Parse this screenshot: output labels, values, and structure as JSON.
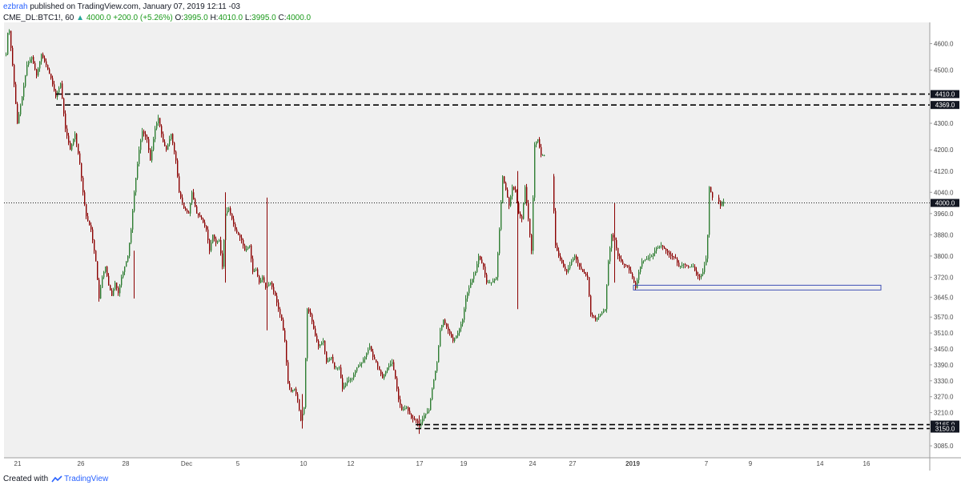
{
  "header": {
    "author": "ezbrah",
    "published": "published on TradingView.com, January 07, 2019 12:11 -03"
  },
  "symbol_line": {
    "symbol": "CME_DL:BTC1!, 60",
    "last": "4000.0",
    "change": "+200.0 (+5.26%)",
    "o_label": "O:",
    "o_value": "3995.0",
    "h_label": "H:",
    "h_value": "4010.0",
    "l_label": "L:",
    "l_value": "3995.0",
    "c_label": "C:",
    "c_value": "4000.0"
  },
  "footer": {
    "created_with": "Created with",
    "brand": "TradingView"
  },
  "colors": {
    "up": "#26a69a",
    "down": "#ef5350",
    "candle_up": "#2e7d32",
    "candle_down": "#8b0000",
    "plot_bg": "#f0f0f0",
    "level_line": "#000000",
    "zone_border": "#3f51b5"
  },
  "chart_data": {
    "type": "candlestick",
    "y_ticks": [
      "4600.0",
      "4500.0",
      "4369.0",
      "4300.0",
      "4200.0",
      "4120.0",
      "4040.0",
      "3960.0",
      "3880.0",
      "3800.0",
      "3720.0",
      "3645.0",
      "3570.0",
      "3510.0",
      "3450.0",
      "3390.0",
      "3330.0",
      "3270.0",
      "3210.0",
      "3085.0"
    ],
    "ylim": [
      3040,
      4680
    ],
    "x_labels": [
      "21",
      "26",
      "28",
      "Dec",
      "5",
      "10",
      "12",
      "17",
      "19",
      "24",
      "27",
      "2019",
      "7",
      "9",
      "14",
      "16"
    ],
    "horizontal_levels": [
      {
        "price": 4410.0,
        "label": "4410.0",
        "style": "dashed"
      },
      {
        "price": 4369.0,
        "label": "4369.0",
        "style": "dashed"
      },
      {
        "price": 4000.0,
        "label": "4000.0",
        "style": "dotted"
      },
      {
        "price": 3165.0,
        "label": "3165.0",
        "style": "dashed"
      },
      {
        "price": 3150.0,
        "label": "3150.0",
        "style": "dashed"
      }
    ],
    "zone": {
      "price_top": 3690,
      "price_bottom": 3672,
      "x_start_label": "2019",
      "x_end_label": "16"
    },
    "price_path": [
      [
        0,
        4560
      ],
      [
        3,
        4680
      ],
      [
        8,
        4520
      ],
      [
        14,
        4300
      ],
      [
        20,
        4400
      ],
      [
        26,
        4520
      ],
      [
        32,
        4550
      ],
      [
        38,
        4480
      ],
      [
        44,
        4560
      ],
      [
        50,
        4520
      ],
      [
        56,
        4470
      ],
      [
        62,
        4400
      ],
      [
        68,
        4450
      ],
      [
        74,
        4280
      ],
      [
        80,
        4200
      ],
      [
        86,
        4260
      ],
      [
        92,
        4150
      ],
      [
        96,
        4040
      ],
      [
        100,
        3950
      ],
      [
        106,
        3900
      ],
      [
        112,
        3780
      ],
      [
        116,
        3640
      ],
      [
        120,
        3720
      ],
      [
        124,
        3760
      ],
      [
        128,
        3690
      ],
      [
        132,
        3650
      ],
      [
        136,
        3700
      ],
      [
        140,
        3660
      ],
      [
        144,
        3720
      ],
      [
        148,
        3760
      ],
      [
        152,
        3800
      ],
      [
        156,
        3900
      ],
      [
        160,
        4040
      ],
      [
        166,
        4200
      ],
      [
        170,
        4270
      ],
      [
        176,
        4240
      ],
      [
        180,
        4160
      ],
      [
        186,
        4280
      ],
      [
        190,
        4320
      ],
      [
        196,
        4230
      ],
      [
        200,
        4200
      ],
      [
        206,
        4260
      ],
      [
        212,
        4160
      ],
      [
        216,
        4040
      ],
      [
        222,
        3980
      ],
      [
        228,
        3960
      ],
      [
        232,
        4040
      ],
      [
        238,
        3960
      ],
      [
        244,
        3940
      ],
      [
        250,
        3900
      ],
      [
        254,
        3820
      ],
      [
        258,
        3880
      ],
      [
        262,
        3850
      ],
      [
        266,
        3860
      ],
      [
        270,
        3760
      ],
      [
        274,
        3960
      ],
      [
        278,
        3980
      ],
      [
        282,
        3940
      ],
      [
        286,
        3900
      ],
      [
        290,
        3880
      ],
      [
        294,
        3860
      ],
      [
        298,
        3820
      ],
      [
        304,
        3840
      ],
      [
        308,
        3740
      ],
      [
        312,
        3750
      ],
      [
        316,
        3700
      ],
      [
        320,
        3720
      ],
      [
        324,
        3680
      ],
      [
        330,
        3700
      ],
      [
        336,
        3650
      ],
      [
        340,
        3600
      ],
      [
        344,
        3560
      ],
      [
        348,
        3480
      ],
      [
        352,
        3320
      ],
      [
        356,
        3290
      ],
      [
        360,
        3300
      ],
      [
        364,
        3260
      ],
      [
        368,
        3180
      ],
      [
        372,
        3230
      ],
      [
        376,
        3600
      ],
      [
        380,
        3580
      ],
      [
        386,
        3500
      ],
      [
        390,
        3460
      ],
      [
        396,
        3480
      ],
      [
        400,
        3400
      ],
      [
        406,
        3420
      ],
      [
        410,
        3380
      ],
      [
        416,
        3380
      ],
      [
        420,
        3300
      ],
      [
        426,
        3330
      ],
      [
        432,
        3340
      ],
      [
        438,
        3380
      ],
      [
        444,
        3400
      ],
      [
        448,
        3420
      ],
      [
        454,
        3460
      ],
      [
        458,
        3420
      ],
      [
        462,
        3400
      ],
      [
        466,
        3370
      ],
      [
        470,
        3340
      ],
      [
        476,
        3380
      ],
      [
        482,
        3400
      ],
      [
        486,
        3340
      ],
      [
        490,
        3260
      ],
      [
        494,
        3220
      ],
      [
        500,
        3230
      ],
      [
        506,
        3190
      ],
      [
        512,
        3180
      ],
      [
        516,
        3160
      ],
      [
        522,
        3200
      ],
      [
        528,
        3220
      ],
      [
        532,
        3300
      ],
      [
        538,
        3400
      ],
      [
        542,
        3520
      ],
      [
        546,
        3560
      ],
      [
        552,
        3520
      ],
      [
        558,
        3480
      ],
      [
        564,
        3510
      ],
      [
        570,
        3560
      ],
      [
        574,
        3640
      ],
      [
        580,
        3700
      ],
      [
        586,
        3740
      ],
      [
        590,
        3800
      ],
      [
        596,
        3760
      ],
      [
        600,
        3700
      ],
      [
        606,
        3700
      ],
      [
        612,
        3720
      ],
      [
        616,
        3900
      ],
      [
        620,
        4100
      ],
      [
        624,
        4050
      ],
      [
        628,
        3990
      ],
      [
        632,
        4060
      ],
      [
        636,
        4040
      ],
      [
        640,
        3960
      ],
      [
        644,
        3940
      ],
      [
        648,
        4060
      ],
      [
        652,
        3940
      ],
      [
        656,
        3820
      ],
      [
        660,
        4220
      ],
      [
        664,
        4240
      ],
      [
        668,
        4180
      ],
      [
        674,
        4180
      ],
      [
        678,
        4140
      ],
      [
        682,
        4100
      ],
      [
        686,
        3840
      ],
      [
        690,
        3800
      ],
      [
        696,
        3760
      ],
      [
        700,
        3740
      ],
      [
        706,
        3780
      ],
      [
        710,
        3800
      ],
      [
        716,
        3760
      ],
      [
        720,
        3740
      ],
      [
        726,
        3720
      ],
      [
        730,
        3580
      ],
      [
        736,
        3560
      ],
      [
        742,
        3580
      ],
      [
        748,
        3600
      ],
      [
        752,
        3780
      ],
      [
        756,
        3880
      ],
      [
        760,
        3860
      ],
      [
        764,
        3800
      ],
      [
        770,
        3770
      ],
      [
        776,
        3760
      ],
      [
        782,
        3720
      ],
      [
        786,
        3680
      ],
      [
        790,
        3740
      ],
      [
        794,
        3780
      ],
      [
        800,
        3790
      ],
      [
        806,
        3800
      ],
      [
        812,
        3830
      ],
      [
        818,
        3840
      ],
      [
        824,
        3820
      ],
      [
        830,
        3800
      ],
      [
        836,
        3790
      ],
      [
        840,
        3760
      ],
      [
        846,
        3770
      ],
      [
        852,
        3760
      ],
      [
        858,
        3760
      ],
      [
        862,
        3730
      ],
      [
        866,
        3720
      ],
      [
        870,
        3740
      ],
      [
        874,
        3790
      ],
      [
        876,
        3880
      ],
      [
        877,
        4070
      ],
      [
        882,
        4020
      ],
      [
        888,
        4020
      ],
      [
        892,
        3990
      ],
      [
        896,
        4005
      ]
    ]
  }
}
